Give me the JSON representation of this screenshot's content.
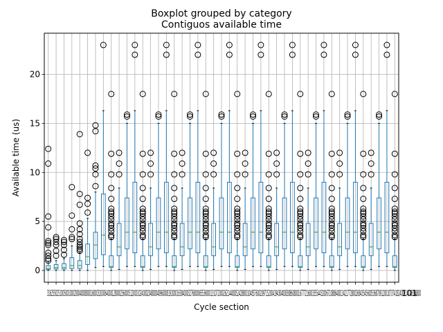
{
  "chart_data": {
    "type": "boxplot",
    "suptitle": "Boxplot grouped by category",
    "title": "Contiguos available time",
    "xlabel": "Cycle section",
    "ylabel": "Available time (us)",
    "ylim": [
      -1.2,
      24.2
    ],
    "yticks": [
      0,
      5,
      10,
      15,
      20
    ],
    "grid": true,
    "colors": {
      "box": "#1f77b4",
      "median": "#2ca02c",
      "grid": "#b0b0b0",
      "flier": "#000000"
    },
    "tick_label_text": "3162550251005001000200040008000160003200064000128000256000512000102400020480004096000819200016384000327680006553600013107200026214400052428800104857600209715200419430400838860800167772160033554432006710886400134217728002684354560053687091200107374182400214748364800",
    "tick_label_tail": "101",
    "boxes": [
      {
        "whislo": 0.0,
        "q1": 0.1,
        "med": 0.2,
        "q3": 0.5,
        "whishi": 0.9,
        "fliers": [
          1.0,
          1.2,
          1.5,
          1.8,
          2.6,
          2.8,
          3.0,
          4.4,
          5.5,
          10.9,
          12.4
        ]
      },
      {
        "whislo": 0.0,
        "q1": 0.15,
        "med": 0.3,
        "q3": 0.6,
        "whishi": 1.0,
        "fliers": [
          1.5,
          2.0,
          2.6,
          2.9,
          3.2,
          3.4
        ]
      },
      {
        "whislo": 0.0,
        "q1": 0.15,
        "med": 0.3,
        "q3": 0.7,
        "whishi": 1.2,
        "fliers": [
          1.6,
          2.1,
          2.6,
          2.9,
          3.1
        ]
      },
      {
        "whislo": 0.0,
        "q1": 0.2,
        "med": 0.5,
        "q3": 1.3,
        "whishi": 2.5,
        "fliers": [
          3.2,
          3.4,
          4.2,
          5.6,
          8.5
        ]
      },
      {
        "whislo": 0.0,
        "q1": 0.2,
        "med": 0.5,
        "q3": 1.0,
        "whishi": 1.8,
        "fliers": [
          2.0,
          2.2,
          2.4,
          2.6,
          2.9,
          3.2,
          3.7,
          4.2,
          4.8,
          6.7,
          7.8,
          13.9
        ]
      },
      {
        "whislo": 0.0,
        "q1": 0.6,
        "med": 1.4,
        "q3": 2.7,
        "whishi": 5.3,
        "fliers": [
          5.9,
          6.8,
          7.4,
          12.0
        ]
      },
      {
        "whislo": 0.3,
        "q1": 1.2,
        "med": 2.6,
        "q3": 3.9,
        "whishi": 8.0,
        "fliers": [
          8.6,
          9.8,
          10.4,
          10.7,
          14.2,
          14.8
        ]
      },
      {
        "whislo": 0.4,
        "q1": 1.6,
        "med": 3.6,
        "q3": 7.8,
        "whishi": 16.3,
        "fliers": [
          23.0
        ]
      },
      {
        "whislo": 0.0,
        "q1": 0.3,
        "med": 0.4,
        "q3": 1.5,
        "whishi": 3.2,
        "fliers": [
          3.4,
          3.6,
          4.0,
          4.3,
          4.6,
          4.8,
          5.2,
          5.5,
          5.8,
          6.0,
          6.3,
          7.3,
          8.4,
          9.8,
          11.9,
          18.0
        ]
      },
      {
        "whislo": 0.1,
        "q1": 1.5,
        "med": 2.4,
        "q3": 4.8,
        "whishi": 8.4,
        "fliers": [
          9.8,
          10.9,
          12.0
        ]
      },
      {
        "whislo": 0.4,
        "q1": 2.2,
        "med": 3.9,
        "q3": 7.4,
        "whishi": 15.0,
        "fliers": [
          15.7,
          15.9
        ]
      },
      {
        "whislo": 0.4,
        "q1": 1.8,
        "med": 3.9,
        "q3": 9.0,
        "whishi": 16.3,
        "fliers": [
          22.0,
          23.0
        ]
      }
    ]
  }
}
